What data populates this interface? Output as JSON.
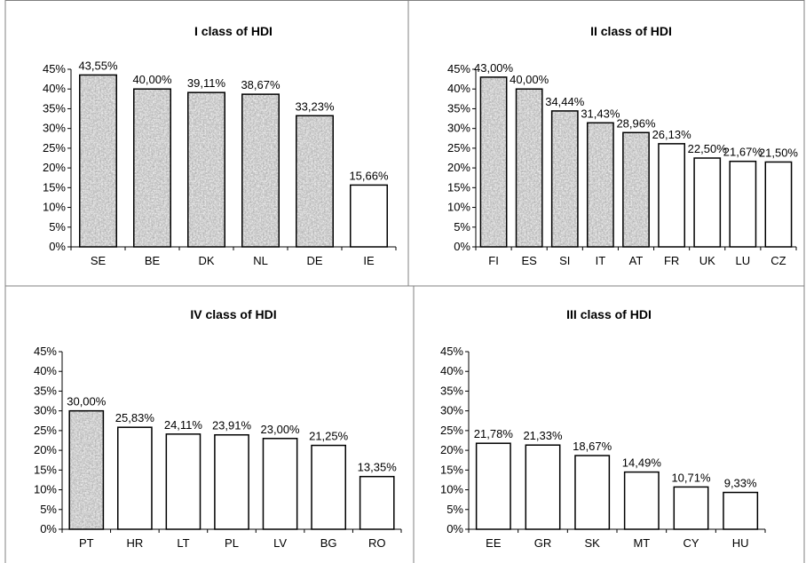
{
  "chart_data": [
    {
      "type": "bar",
      "title": "I class of HDI",
      "categories": [
        "SE",
        "BE",
        "DK",
        "NL",
        "DE",
        "IE"
      ],
      "values": [
        43.55,
        40.0,
        39.11,
        38.67,
        33.23,
        15.66
      ],
      "value_labels": [
        "43,55%",
        "40,00%",
        "39,11%",
        "38,67%",
        "33,23%",
        "15,66%"
      ],
      "patterned": [
        true,
        true,
        true,
        true,
        true,
        false
      ],
      "ylim": [
        0,
        45
      ],
      "yticks": [
        "0%",
        "5%",
        "10%",
        "15%",
        "20%",
        "25%",
        "30%",
        "35%",
        "40%",
        "45%"
      ],
      "grid": false
    },
    {
      "type": "bar",
      "title": "II class of HDI",
      "categories": [
        "FI",
        "ES",
        "SI",
        "IT",
        "AT",
        "FR",
        "UK",
        "LU",
        "CZ"
      ],
      "values": [
        43.0,
        40.0,
        34.44,
        31.43,
        28.96,
        26.13,
        22.5,
        21.67,
        21.5
      ],
      "value_labels": [
        "43,00%",
        "40,00%",
        "34,44%",
        "31,43%",
        "28,96%",
        "26,13%",
        "22,50%",
        "21,67%",
        "21,50%"
      ],
      "patterned": [
        true,
        true,
        true,
        true,
        true,
        false,
        false,
        false,
        false
      ],
      "ylim": [
        0,
        45
      ],
      "yticks": [
        "0%",
        "5%",
        "10%",
        "15%",
        "20%",
        "25%",
        "30%",
        "35%",
        "40%",
        "45%"
      ],
      "grid": false
    },
    {
      "type": "bar",
      "title": "IV class of HDI",
      "categories": [
        "PT",
        "HR",
        "LT",
        "PL",
        "LV",
        "BG",
        "RO"
      ],
      "values": [
        30.0,
        25.83,
        24.11,
        23.91,
        23.0,
        21.25,
        13.35
      ],
      "value_labels": [
        "30,00%",
        "25,83%",
        "24,11%",
        "23,91%",
        "23,00%",
        "21,25%",
        "13,35%"
      ],
      "patterned": [
        true,
        false,
        false,
        false,
        false,
        false,
        false
      ],
      "ylim": [
        0,
        45
      ],
      "yticks": [
        "0%",
        "5%",
        "10%",
        "15%",
        "20%",
        "25%",
        "30%",
        "35%",
        "40%",
        "45%"
      ],
      "grid": false
    },
    {
      "type": "bar",
      "title": "III class of HDI",
      "categories": [
        "EE",
        "GR",
        "SK",
        "MT",
        "CY",
        "HU"
      ],
      "values": [
        21.78,
        21.33,
        18.67,
        14.49,
        10.71,
        9.33
      ],
      "value_labels": [
        "21,78%",
        "21,33%",
        "18,67%",
        "14,49%",
        "10,71%",
        "9,33%"
      ],
      "patterned": [
        false,
        false,
        false,
        false,
        false,
        false
      ],
      "ylim": [
        0,
        45
      ],
      "yticks": [
        "0%",
        "5%",
        "10%",
        "15%",
        "20%",
        "25%",
        "30%",
        "35%",
        "40%",
        "45%"
      ],
      "grid": false
    }
  ],
  "colors": {
    "bar_fill": "#ffffff",
    "bar_stroke": "#000000",
    "pattern_dark": "#6e6e6e",
    "pattern_light": "#c8c8c8",
    "text": "#000000",
    "panel_border": "#808080"
  }
}
